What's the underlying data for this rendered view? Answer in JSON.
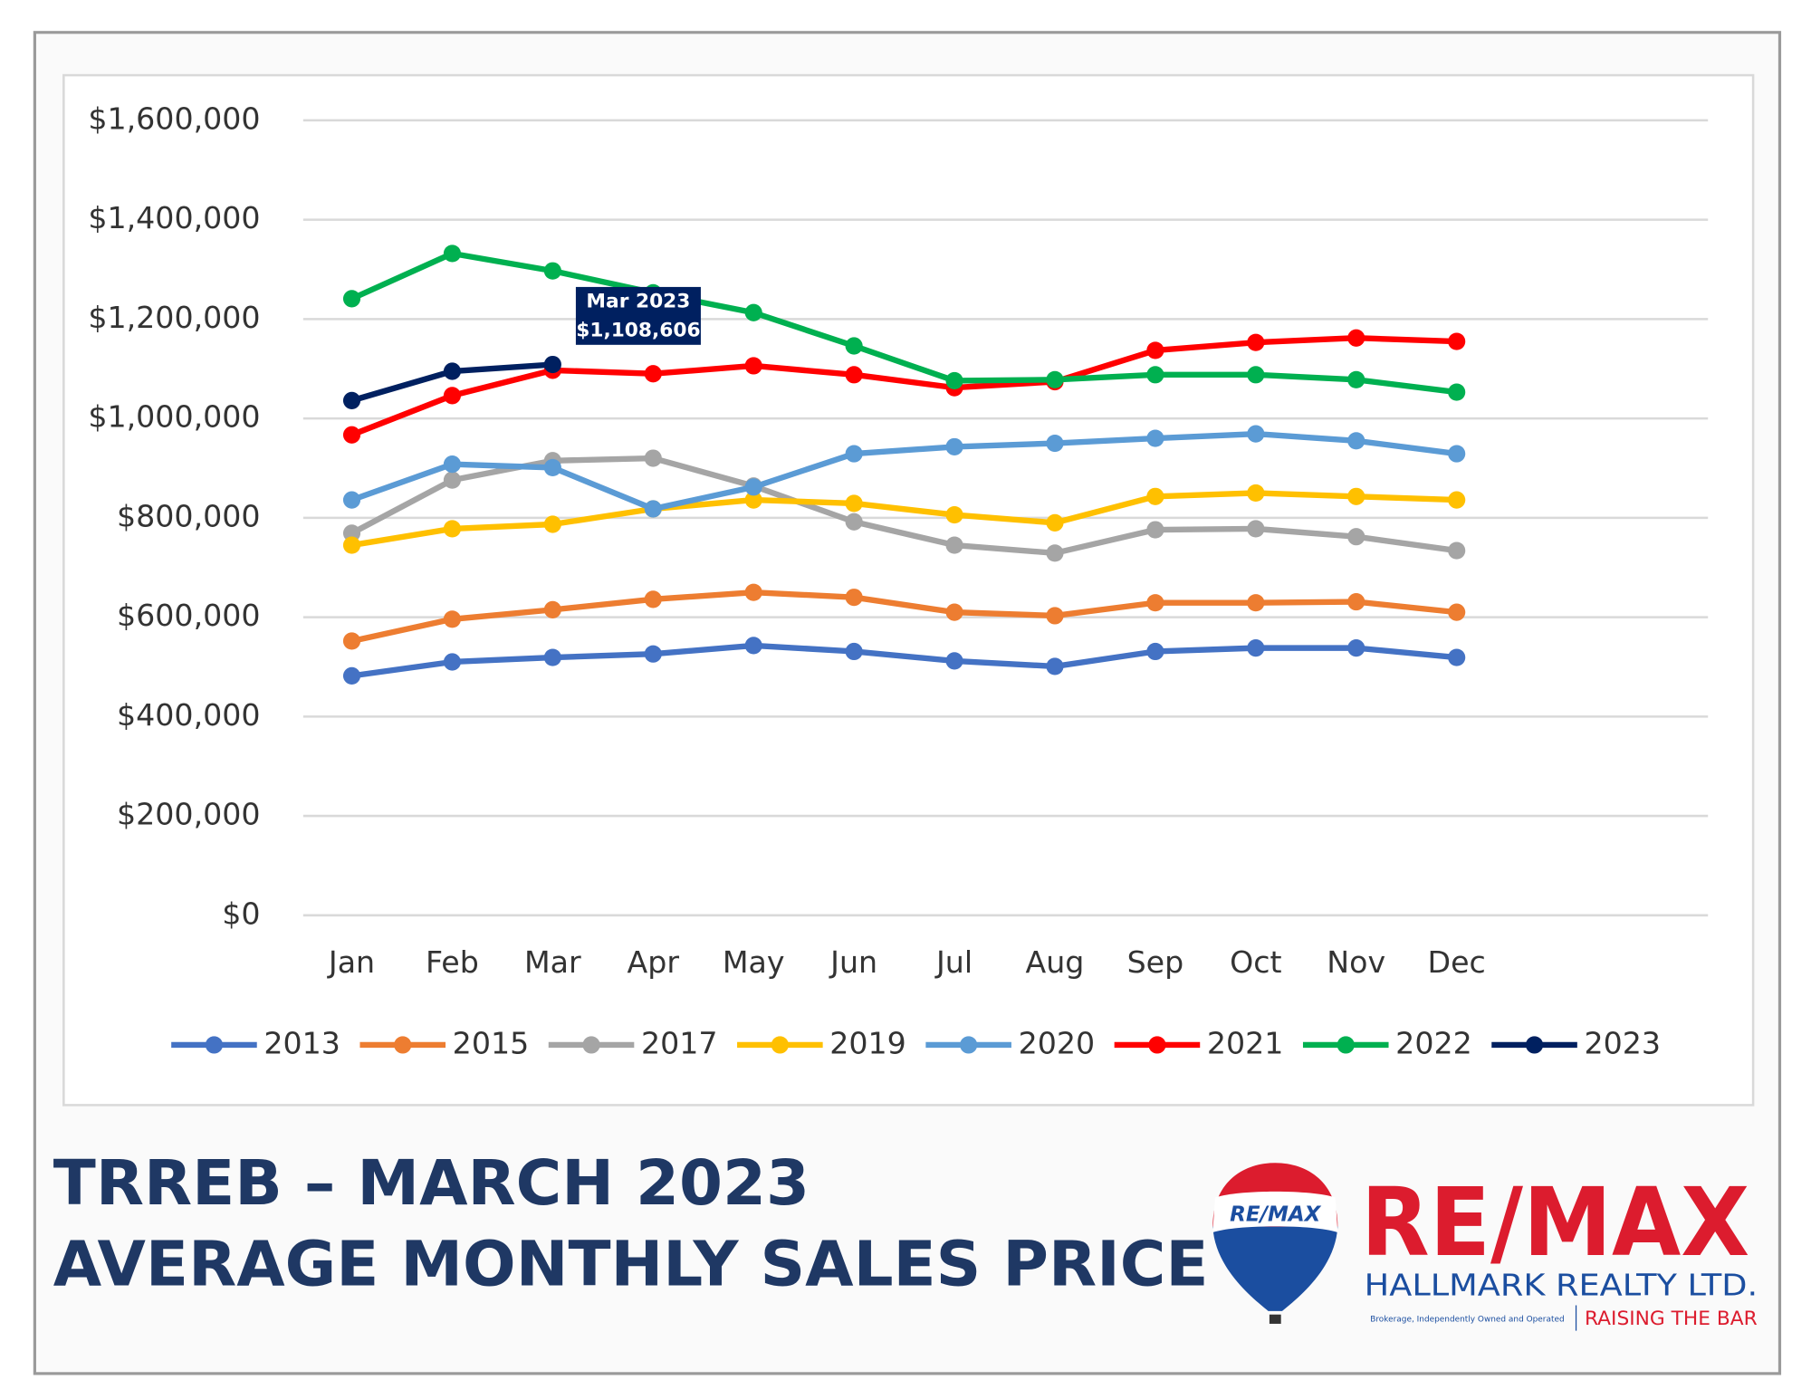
{
  "chart_data": {
    "type": "line",
    "categories": [
      "Jan",
      "Feb",
      "Mar",
      "Apr",
      "May",
      "Jun",
      "Jul",
      "Aug",
      "Sep",
      "Oct",
      "Nov",
      "Dec"
    ],
    "ylim": [
      0,
      1600000
    ],
    "yticks": [
      {
        "value": 0,
        "label": "$0"
      },
      {
        "value": 200000,
        "label": "$200,000"
      },
      {
        "value": 400000,
        "label": "$400,000"
      },
      {
        "value": 600000,
        "label": "$600,000"
      },
      {
        "value": 800000,
        "label": "$800,000"
      },
      {
        "value": 1000000,
        "label": "$1,000,000"
      },
      {
        "value": 1200000,
        "label": "$1,200,000"
      },
      {
        "value": 1400000,
        "label": "$1,400,000"
      },
      {
        "value": 1600000,
        "label": "$1,600,000"
      }
    ],
    "grid": true,
    "legend": "bottom",
    "annotation": {
      "title": "Mar 2023"
    },
    "series": [
      {
        "name": "2013",
        "color": "#4472c4",
        "values": [
          482000,
          510000,
          519000,
          526000,
          543000,
          531000,
          512000,
          501000,
          531000,
          538000,
          538000,
          519000
        ]
      },
      {
        "name": "2015",
        "color": "#ed7d31",
        "values": [
          552000,
          596000,
          615000,
          636000,
          650000,
          640000,
          610000,
          603000,
          629000,
          629000,
          631000,
          610000
        ]
      },
      {
        "name": "2017",
        "color": "#a5a5a5",
        "values": [
          769000,
          876000,
          915000,
          920000,
          864000,
          792000,
          745000,
          729000,
          776000,
          778000,
          762000,
          734000
        ]
      },
      {
        "name": "2019",
        "color": "#ffc000",
        "values": [
          745000,
          778000,
          787000,
          818000,
          836000,
          829000,
          806000,
          790000,
          843000,
          850000,
          843000,
          836000
        ]
      },
      {
        "name": "2020",
        "color": "#5b9bd5",
        "values": [
          836000,
          908000,
          901000,
          818000,
          862000,
          929000,
          943000,
          950000,
          960000,
          969000,
          955000,
          929000
        ]
      },
      {
        "name": "2021",
        "color": "#ff0000",
        "values": [
          967000,
          1046000,
          1097000,
          1090000,
          1106000,
          1088000,
          1062000,
          1074000,
          1137000,
          1153000,
          1162000,
          1155000
        ]
      },
      {
        "name": "2022",
        "color": "#00b050",
        "values": [
          1241000,
          1332000,
          1297000,
          1253000,
          1213000,
          1146000,
          1076000,
          1078000,
          1088000,
          1088000,
          1078000,
          1053000
        ]
      },
      {
        "name": "2023",
        "color": "#002060",
        "values": [
          1036000,
          1095000,
          1108606,
          null,
          null,
          null,
          null,
          null,
          null,
          null,
          null,
          null
        ],
        "value_labels": [
          null,
          null,
          "$1,108,606",
          null,
          null,
          null,
          null,
          null,
          null,
          null,
          null,
          null
        ]
      }
    ]
  },
  "footer": {
    "title_line1": "TRREB – MARCH 2023",
    "title_line2": "AVERAGE MONTHLY SALES PRICE"
  },
  "branding": {
    "balloon_text": "RE/MAX",
    "logo": "RE/MAX",
    "company": "HALLMARK REALTY LTD.",
    "fine_print": "Brokerage, Independently Owned and Operated",
    "slogan": "RAISING THE BAR"
  }
}
